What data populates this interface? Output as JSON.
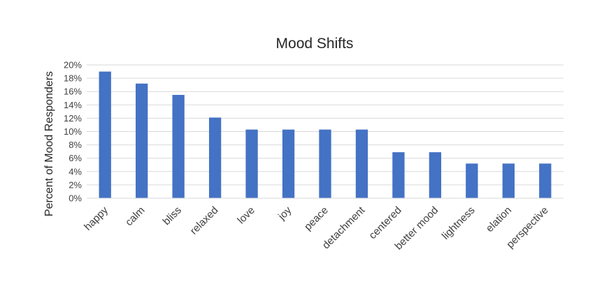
{
  "chart_data": {
    "type": "bar",
    "title": "Mood Shifts",
    "xlabel": "",
    "ylabel": "Percent of Mood Responders",
    "categories": [
      "happy",
      "calm",
      "bliss",
      "relaxed",
      "love",
      "joy",
      "peace",
      "detachment",
      "centered",
      "better mood",
      "lightness",
      "elation",
      "perspective"
    ],
    "values": [
      19.0,
      17.2,
      15.5,
      12.1,
      10.3,
      10.3,
      10.3,
      10.3,
      6.9,
      6.9,
      5.2,
      5.2,
      5.2
    ],
    "ylim": [
      0,
      20
    ],
    "yticks": [
      "0%",
      "2%",
      "4%",
      "6%",
      "8%",
      "10%",
      "12%",
      "14%",
      "16%",
      "18%",
      "20%"
    ],
    "grid": true,
    "legend": "none",
    "colors": {
      "bar": "#4472C4",
      "grid": "#D9D9D9"
    }
  }
}
